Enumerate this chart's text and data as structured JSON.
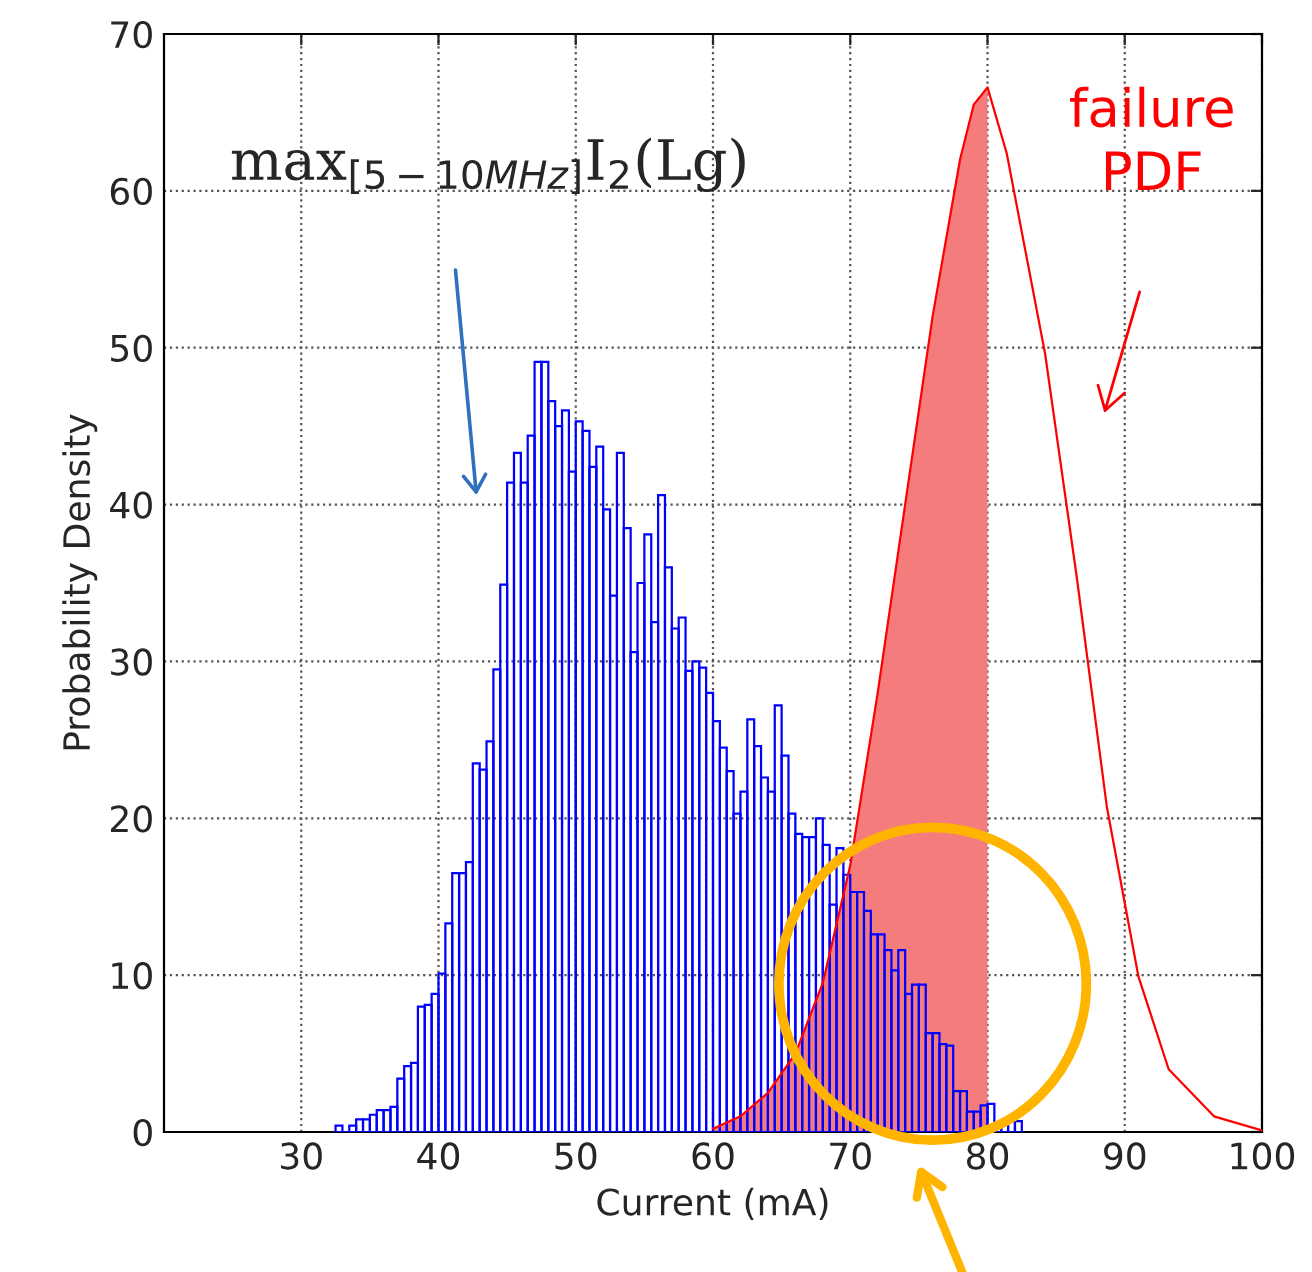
{
  "chart_data": {
    "type": "histogram",
    "xlabel": "Current (mA)",
    "ylabel": "Probability Density",
    "xlim": [
      20,
      100
    ],
    "xticks": [
      30,
      40,
      50,
      60,
      70,
      80,
      90,
      100
    ],
    "ylim": [
      0,
      70
    ],
    "yticks": [
      0,
      10,
      20,
      30,
      40,
      50,
      60,
      70
    ],
    "grid": true,
    "annotations": [
      "max$_{[5−10MHz]}$I$_{2}$(Lg)",
      "failure\nPDF"
    ],
    "series": [
      {
        "color": "#0000ff",
        "bins": [
          32.5,
          33,
          33.5,
          34,
          34.5,
          35,
          35.5,
          36,
          36.5,
          37,
          37.5,
          38,
          38.5,
          39,
          39.5,
          40,
          40.5,
          41,
          41.5,
          42,
          42.5,
          43,
          43.5,
          44,
          44.5,
          45,
          45.5,
          46,
          46.5,
          47,
          47.5,
          48,
          48.5,
          49,
          49.5,
          50,
          50.5,
          51,
          51.5,
          52,
          52.5,
          53,
          53.5,
          54,
          54.5,
          55,
          55.5,
          56,
          56.5,
          57,
          57.5,
          58,
          58.5,
          59,
          59.5,
          60,
          60.5,
          61,
          61.5,
          62,
          62.5,
          63,
          63.5,
          64,
          64.5,
          65,
          65.5,
          66,
          66.5,
          67,
          67.5,
          68,
          68.5,
          69,
          69.5,
          70,
          70.5,
          71,
          71.5,
          72,
          72.5,
          73,
          73.5,
          74,
          74.5,
          75,
          75.5,
          76,
          76.5,
          77,
          77.5,
          78,
          78.5,
          79,
          79.5,
          80,
          80.5,
          81,
          81.5,
          82,
          82.5
        ],
        "values": [
          0.4,
          0,
          0.4,
          0.8,
          0.8,
          1.1,
          1.4,
          1.4,
          1.6,
          3.4,
          4.2,
          4.4,
          8,
          8.1,
          8.8,
          10.1,
          13.3,
          16.5,
          16.5,
          17.2,
          23.5,
          23.1,
          24.9,
          29.5,
          34.9,
          41.4,
          43.3,
          41.4,
          44.4,
          49.1,
          49.1,
          46.6,
          45,
          46,
          42.1,
          45.3,
          44.7,
          42.4,
          43.7,
          39.7,
          34.2,
          43.3,
          38.5,
          30.6,
          35,
          38.1,
          32.5,
          40.6,
          36,
          32.1,
          32.8,
          29.4,
          30,
          29.6,
          28,
          26.2,
          24.5,
          23,
          20.3,
          21.7,
          26.3,
          24.6,
          22.6,
          21.7,
          27.2,
          24,
          20.3,
          19,
          18.8,
          18.8,
          20,
          18.3,
          14.5,
          18.1,
          16.4,
          15.3,
          15.3,
          14.1,
          12.6,
          12.6,
          11.6,
          10.3,
          11.6,
          8.8,
          9.4,
          9.4,
          6.3,
          6.3,
          5.6,
          5.5,
          2.6,
          2.6,
          1.3,
          1.3,
          1.7,
          1.8,
          0.5,
          0.5,
          0.7,
          0.7
        ]
      },
      {
        "type": "area",
        "color": "#f47c7c",
        "x": [
          60,
          62,
          64,
          66,
          68,
          70,
          72,
          74,
          76,
          78,
          79,
          80
        ],
        "values": [
          0.2,
          1,
          2.5,
          5,
          9.5,
          17,
          28,
          40,
          52,
          62,
          65.5,
          66.6
        ]
      },
      {
        "type": "line",
        "color": "#ff0000",
        "x": [
          60,
          62,
          64,
          66,
          68,
          70,
          72,
          74,
          76,
          78,
          79,
          80,
          81.4,
          84.2,
          86.5,
          88.7,
          91,
          93.2,
          96.5,
          100
        ],
        "values": [
          0.2,
          1,
          2.5,
          5,
          9.5,
          17,
          28,
          40,
          52,
          62,
          65.5,
          66.6,
          62.4,
          49.6,
          35.4,
          20.7,
          9.9,
          4,
          1,
          0.1
        ]
      }
    ]
  }
}
